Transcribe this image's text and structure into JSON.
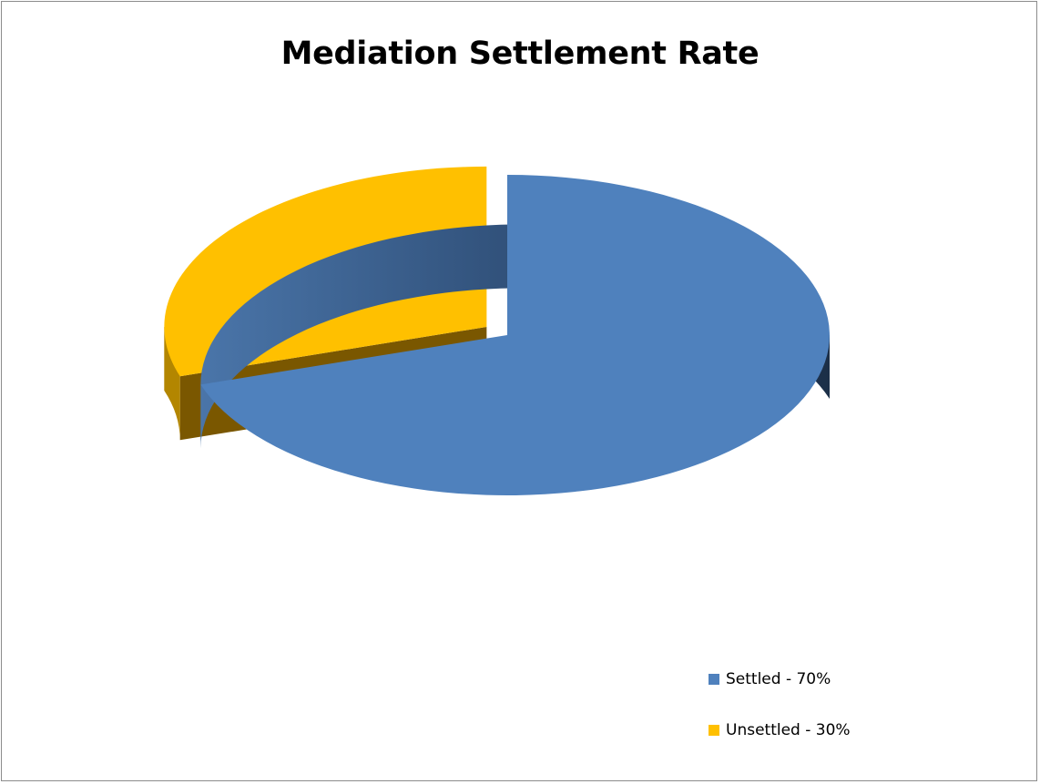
{
  "chart_data": {
    "type": "pie",
    "title": "Mediation Settlement Rate",
    "slices": [
      {
        "name": "Settled",
        "value": 70,
        "label": "Settled - 70%",
        "color": "#4f81bd"
      },
      {
        "name": "Unsettled",
        "value": 30,
        "label": "Unsettled - 30%",
        "color": "#ffc000"
      }
    ],
    "legend_position": "bottom-right",
    "style": "3d-exploded"
  }
}
